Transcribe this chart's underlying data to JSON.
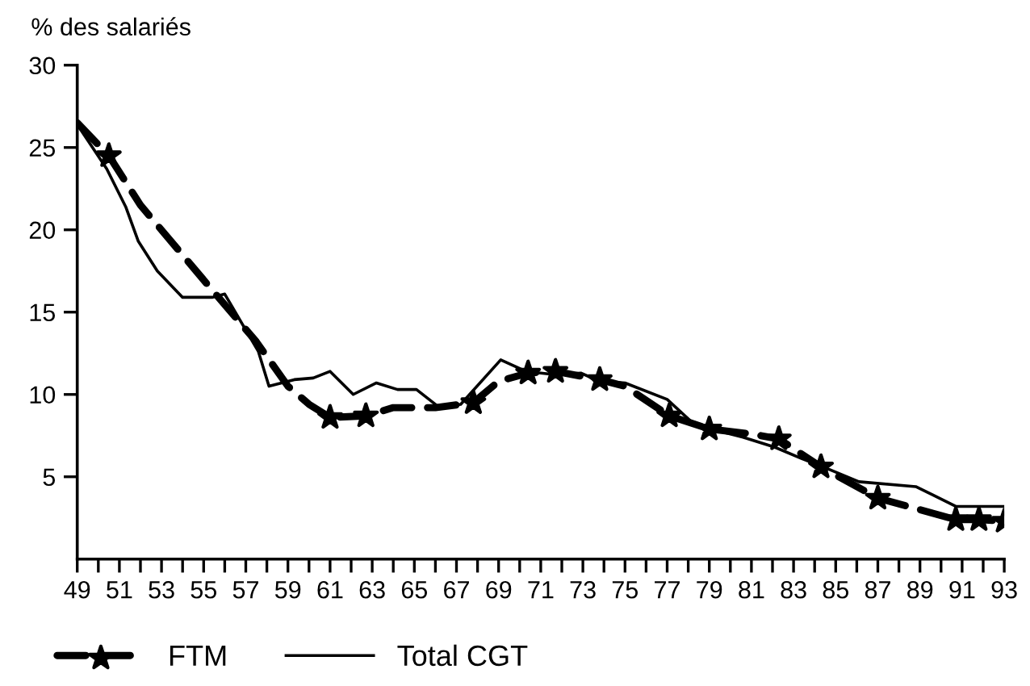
{
  "chart_data": {
    "type": "line",
    "ylabel": "% des salariés",
    "xlim": [
      49,
      93
    ],
    "ylim": [
      0,
      30
    ],
    "xticks": [
      49,
      {
        "value": 50,
        "label": null
      },
      51,
      {
        "value": 52,
        "label": null
      },
      53,
      {
        "value": 54,
        "label": null
      },
      55,
      {
        "value": 56,
        "label": null
      },
      57,
      {
        "value": 58,
        "label": null
      },
      59,
      {
        "value": 60,
        "label": null
      },
      61,
      {
        "value": 62,
        "label": null
      },
      63,
      {
        "value": 64,
        "label": null
      },
      65,
      {
        "value": 66,
        "label": null
      },
      67,
      {
        "value": 68,
        "label": null
      },
      69,
      {
        "value": 70,
        "label": null
      },
      71,
      {
        "value": 72,
        "label": null
      },
      73,
      {
        "value": 74,
        "label": null
      },
      75,
      {
        "value": 76,
        "label": null
      },
      77,
      {
        "value": 78,
        "label": null
      },
      79,
      {
        "value": 80,
        "label": null
      },
      81,
      {
        "value": 82,
        "label": null
      },
      83,
      {
        "value": 84,
        "label": null
      },
      85,
      {
        "value": 86,
        "label": null
      },
      87,
      {
        "value": 88,
        "label": null
      },
      89,
      {
        "value": 90,
        "label": null
      },
      91,
      {
        "value": 92,
        "label": null
      },
      93
    ],
    "yticks": [
      5,
      10,
      15,
      20,
      25,
      30
    ],
    "grid": false,
    "legend": "bottom left",
    "series": [
      {
        "name": "FTM",
        "color": "#000000",
        "line_style": "dashed",
        "marker": "none",
        "x": [
          49,
          50.5,
          52,
          55.5,
          57.5,
          59,
          60,
          61,
          62.7,
          64,
          66,
          67.8,
          69,
          70.4,
          71.7,
          73.8,
          75,
          77.1,
          79,
          81,
          82.3,
          84.3,
          87,
          89,
          90.7,
          91.8,
          93
        ],
        "values": [
          26.5,
          24.5,
          21.5,
          16.2,
          13.2,
          10.5,
          9.4,
          8.6,
          8.7,
          9.2,
          9.2,
          9.5,
          10.8,
          11.3,
          11.4,
          10.9,
          10.5,
          8.7,
          7.9,
          7.6,
          7.3,
          5.6,
          3.7,
          3.0,
          2.4,
          2.4,
          2.3
        ]
      },
      {
        "type": "scatter",
        "color": "#000000",
        "marker": "star",
        "x": [
          50.5,
          61,
          62.7,
          67.8,
          70.4,
          71.7,
          73.8,
          77.1,
          79,
          82.3,
          84.3,
          87,
          90.7,
          91.8,
          93
        ],
        "values": [
          24.5,
          8.6,
          8.7,
          9.5,
          11.3,
          11.4,
          10.9,
          8.7,
          7.9,
          7.3,
          5.6,
          3.7,
          2.4,
          2.4,
          2.3
        ]
      },
      {
        "name": "Total CGT",
        "color": "#000000",
        "line_style": "solid",
        "marker": "none",
        "x": [
          49,
          50.4,
          51.3,
          51.9,
          52.8,
          54,
          55.4,
          56,
          57.6,
          58.1,
          59.3,
          60.2,
          61,
          62.1,
          63.2,
          64.2,
          65.1,
          66.2,
          67.2,
          69.1,
          70.3,
          71.7,
          72.9,
          73.8,
          75,
          77,
          78.1,
          79.4,
          80.6,
          82.1,
          83.4,
          84.6,
          86.1,
          88.8,
          89.6,
          90.7,
          93
        ],
        "values": [
          26.4,
          23.7,
          21.4,
          19.3,
          17.5,
          15.9,
          15.9,
          16.1,
          12.6,
          10.5,
          10.9,
          11.0,
          11.4,
          10.0,
          10.7,
          10.3,
          10.3,
          9.2,
          9.4,
          12.1,
          11.4,
          11.2,
          11.3,
          10.8,
          10.7,
          9.7,
          8.4,
          7.8,
          7.4,
          6.8,
          6.1,
          5.5,
          4.7,
          4.4,
          3.9,
          3.2,
          3.2
        ]
      }
    ]
  }
}
